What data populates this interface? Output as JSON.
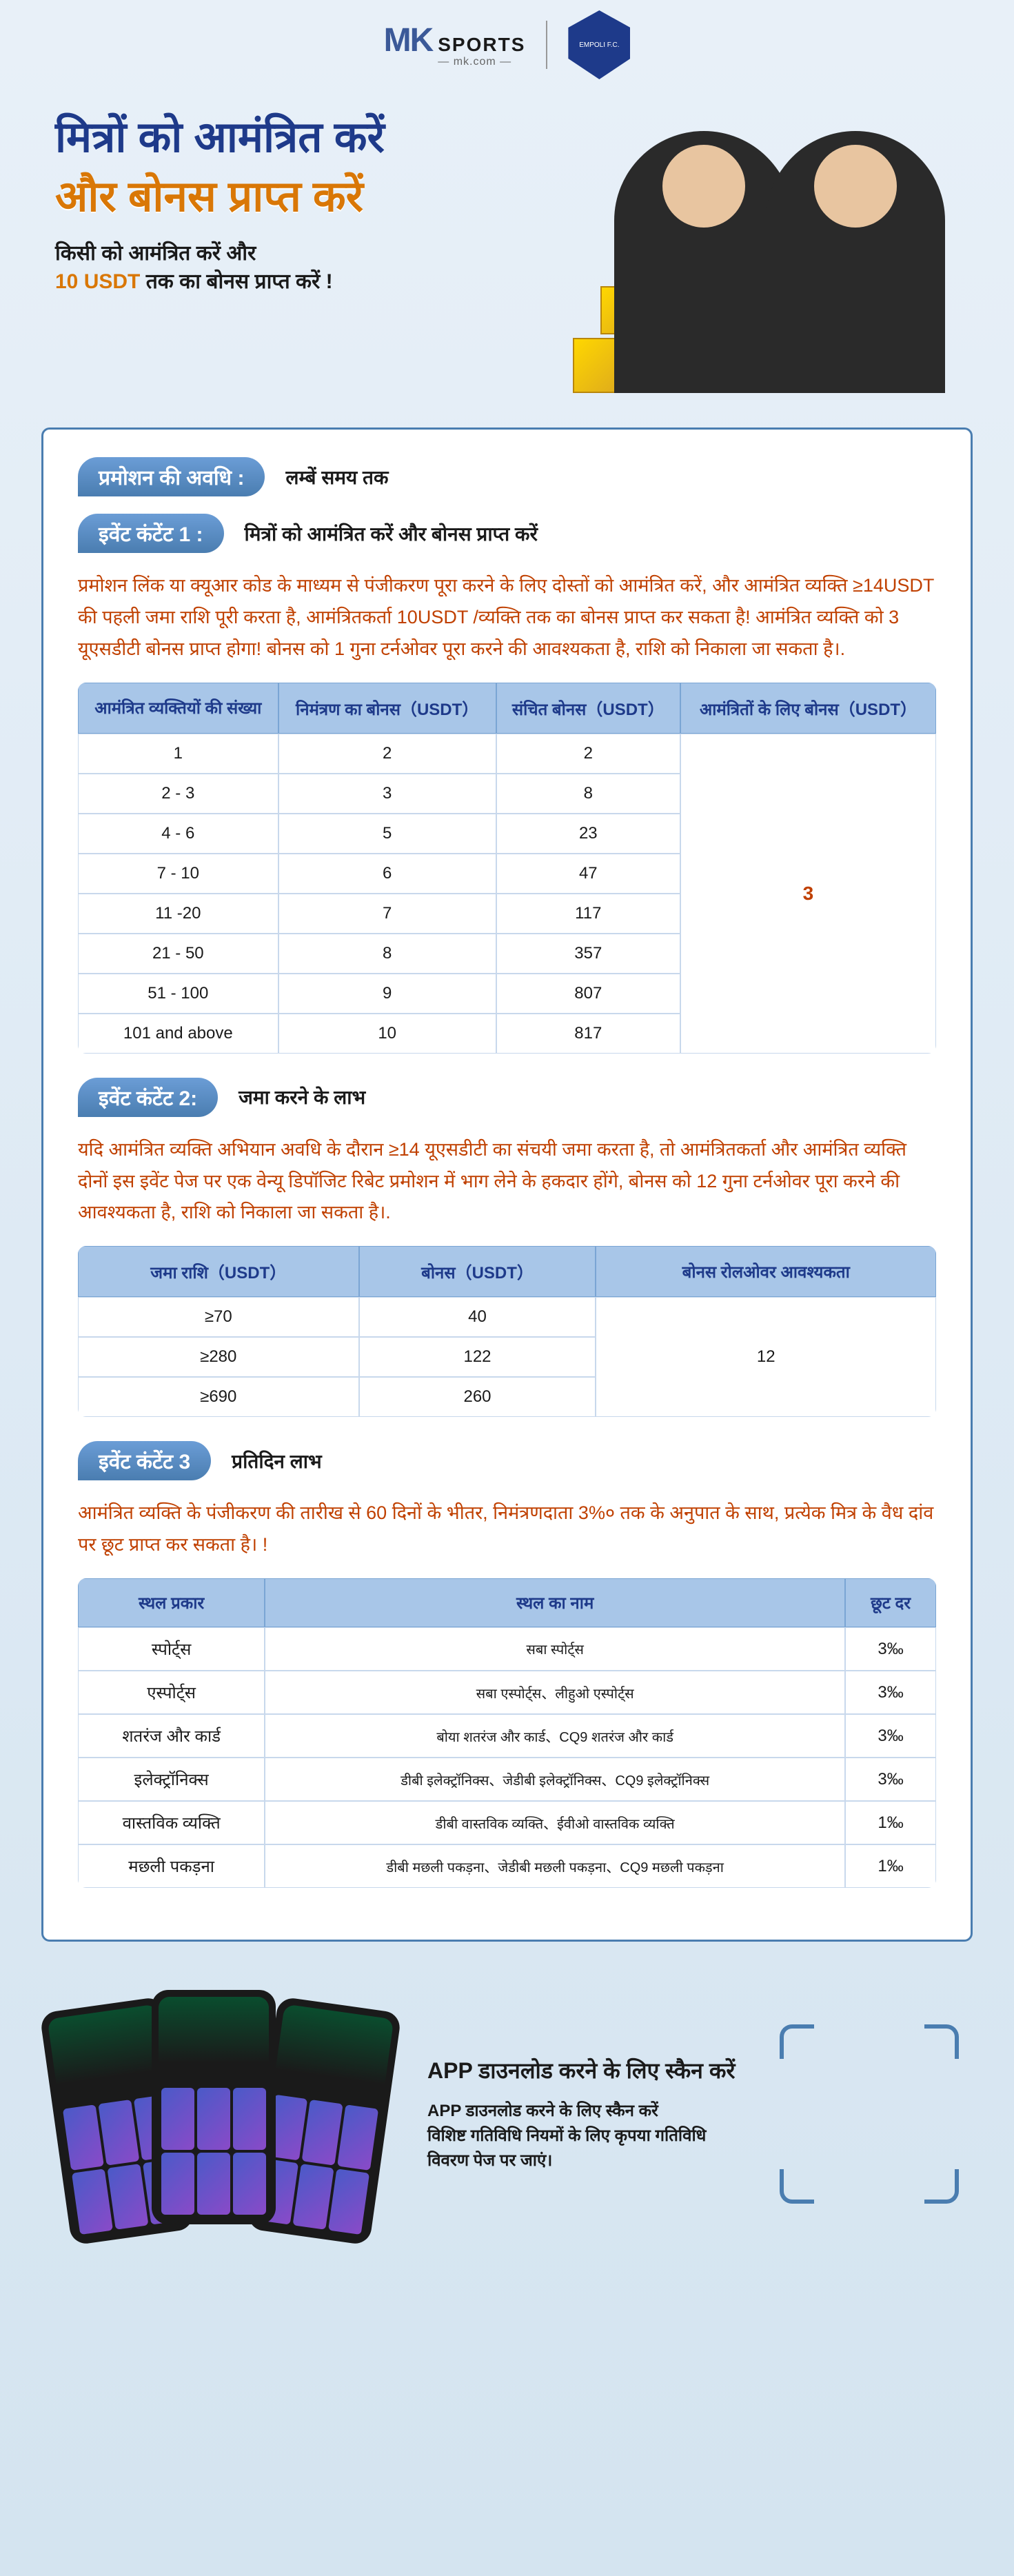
{
  "header": {
    "logo_mk": "MK",
    "logo_sports": "SPORTS",
    "logo_domain": "— mk.com —",
    "badge_text": "EMPOLI F.C."
  },
  "hero": {
    "title_line1": "मित्रों को आमंत्रित करें",
    "title_line2": "और बोनस प्राप्त करें",
    "desc_line1": "किसी को आमंत्रित करें और",
    "desc_bold": "10 USDT",
    "desc_line2": " तक का बोनस प्राप्त करें !"
  },
  "promotion": {
    "pill_label": "प्रमोशन की अवधि :",
    "value": "लम्बें समय तक"
  },
  "event1": {
    "pill_label": "इवेंट कंटेंट 1 :",
    "subtitle": "मित्रों को आमंत्रित करें और बोनस प्राप्त करें",
    "body": "प्रमोशन लिंक या क्यूआर कोड के माध्यम से पंजीकरण पूरा करने के लिए दोस्तों को आमंत्रित करें, और आमंत्रित व्यक्ति ≥14USDT की पहली जमा राशि पूरी करता है, आमंत्रितकर्ता 10USDT /व्यक्ति तक का बोनस प्राप्त कर सकता है! आमंत्रित व्यक्ति को 3 यूएसडीटी बोनस प्राप्त होगा! बोनस को 1 गुना टर्नओवर पूरा करने की आवश्यकता है, राशि को निकाला जा सकता है।.",
    "table": {
      "headers": [
        "आमंत्रित व्यक्तियों की संख्या",
        "निमंत्रण का बोनस（USDT）",
        "संचित बोनस（USDT）",
        "आमंत्रितों के लिए बोनस（USDT）"
      ],
      "rows": [
        [
          "1",
          "2",
          "2"
        ],
        [
          "2 - 3",
          "3",
          "8"
        ],
        [
          "4 - 6",
          "5",
          "23"
        ],
        [
          "7 - 10",
          "6",
          "47"
        ],
        [
          "11 -20",
          "7",
          "117"
        ],
        [
          "21 - 50",
          "8",
          "357"
        ],
        [
          "51 - 100",
          "9",
          "807"
        ],
        [
          "101 and above",
          "10",
          "817"
        ]
      ],
      "merged_bonus": "3"
    }
  },
  "event2": {
    "pill_label": "इवेंट कंटेंट 2:",
    "subtitle": "जमा करने के लाभ",
    "body": "यदि आमंत्रित व्यक्ति अभियान अवधि के दौरान ≥14 यूएसडीटी का संचयी जमा करता है, तो आमंत्रितकर्ता और आमंत्रित व्यक्ति दोनों इस इवेंट पेज पर एक वेन्यू डिपॉजिट रिबेट प्रमोशन में भाग लेने के हकदार होंगे, बोनस को 12 गुना टर्नओवर पूरा करने की आवश्यकता है, राशि को निकाला जा सकता है।.",
    "table": {
      "headers": [
        "जमा राशि（USDT）",
        "बोनस（USDT）",
        "बोनस रोलओवर आवश्यकता"
      ],
      "rows": [
        [
          "≥70",
          "40"
        ],
        [
          "≥280",
          "122"
        ],
        [
          "≥690",
          "260"
        ]
      ],
      "merged_rollover": "12"
    }
  },
  "event3": {
    "pill_label": "इवेंट कंटेंट 3",
    "subtitle": "प्रतिदिन लाभ",
    "body": "आमंत्रित व्यक्ति के पंजीकरण की तारीख से 60 दिनों के भीतर, निमंत्रणदाता 3%० तक के अनुपात के साथ, प्रत्येक मित्र के वैध दांव पर छूट प्राप्त कर सकता है। !",
    "table": {
      "headers": [
        "स्थल प्रकार",
        "स्थल का नाम",
        "छूट दर"
      ],
      "rows": [
        [
          "स्पोर्ट्स",
          "सबा स्पोर्ट्स",
          "3‰"
        ],
        [
          "एस्पोर्ट्स",
          "सबा एस्पोर्ट्स、लीहुओ एस्पोर्ट्स",
          "3‰"
        ],
        [
          "शतरंज और कार्ड",
          "बोया शतरंज और कार्ड、CQ9 शतरंज और कार्ड",
          "3‰"
        ],
        [
          "इलेक्ट्रॉनिक्स",
          "डीबी इलेक्ट्रॉनिक्स、जेडीबी इलेक्ट्रॉनिक्स、CQ9 इलेक्ट्रॉनिक्स",
          "3‰"
        ],
        [
          "वास्तविक व्यक्ति",
          "डीबी वास्तविक व्यक्ति、ईवीओ वास्तविक व्यक्ति",
          "1‰"
        ],
        [
          "मछली पकड़ना",
          "डीबी मछली पकड़ना、जेडीबी मछली पकड़ना、CQ9 मछली पकड़ना",
          "1‰"
        ]
      ]
    }
  },
  "footer": {
    "title": "APP  डाउनलोड करने के लिए स्कैन करें",
    "desc_line1": "APP  डाउनलोड करने के लिए स्कैन करें",
    "desc_line2": "विशिष्ट गतिविधि नियमों के लिए कृपया गतिविधि विवरण पेज पर जाएं।"
  },
  "colors": {
    "primary_blue": "#1e3a8a",
    "accent_gold": "#d97706",
    "body_orange": "#c04000",
    "border_blue": "#4a7db0",
    "table_header_bg": "#a8c6e8",
    "table_header_text": "#1e3a8a",
    "table_border": "#c8d8ec"
  }
}
